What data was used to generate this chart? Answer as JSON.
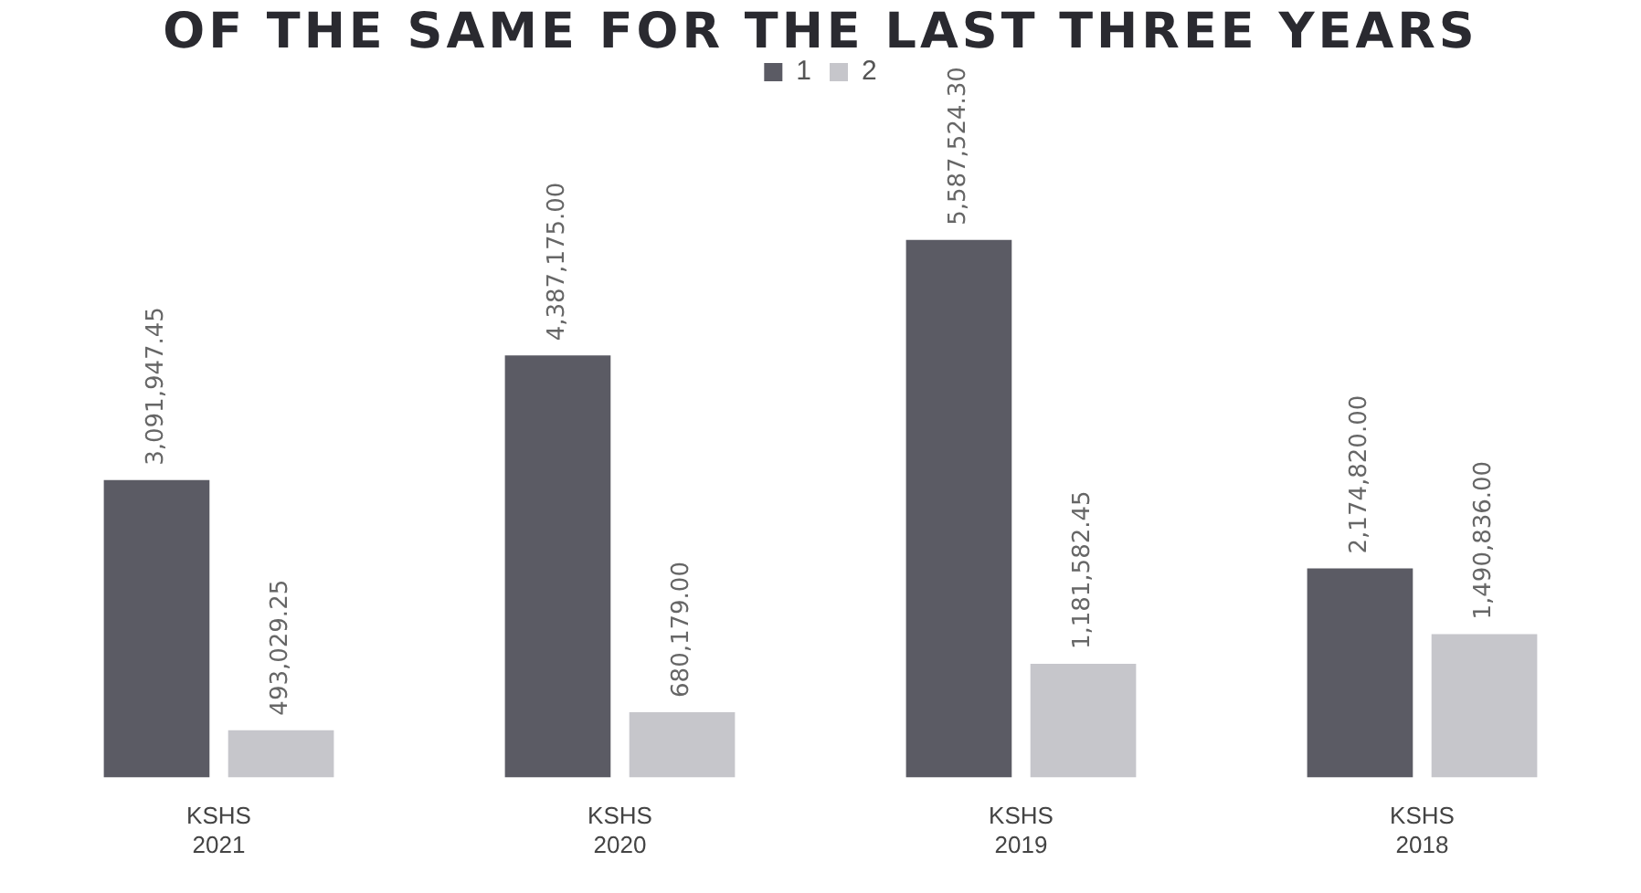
{
  "chart_data": {
    "type": "bar",
    "title": "OF THE SAME FOR THE LAST THREE YEARS",
    "categories": [
      "KSHS 2021",
      "KSHS 2020",
      "KSHS 2019",
      "KSHS 2018"
    ],
    "series": [
      {
        "name": "1",
        "color": "#5b5b64",
        "values": [
          3091947.45,
          4387175.0,
          5587524.3,
          2174820.0
        ],
        "value_labels": [
          "3,091,947.45",
          "4,387,175.00",
          "5,587,524.30",
          "2,174,820.00"
        ]
      },
      {
        "name": "2",
        "color": "#c6c6cb",
        "values": [
          493029.25,
          680179.0,
          1181582.45,
          1490836.0
        ],
        "value_labels": [
          "493,029.25",
          "680,179.00",
          "1,181,582.45",
          "1,490,836.00"
        ]
      }
    ],
    "legend": "top",
    "grid": false
  }
}
